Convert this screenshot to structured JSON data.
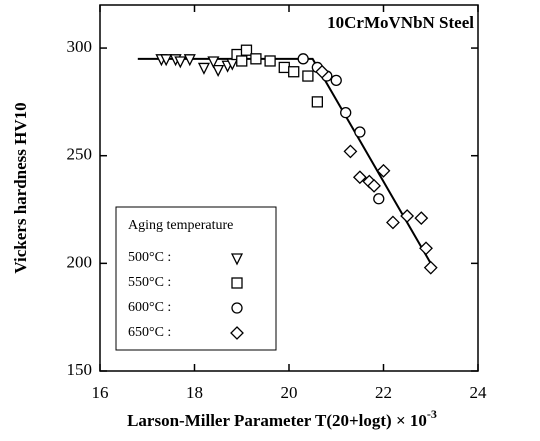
{
  "chart_data": {
    "type": "scatter",
    "annotation": "10CrMoVNbN Steel",
    "xlabel": "Larson-Miller Parameter T(20+logt) × 10",
    "xlabel_sup": "-3",
    "ylabel": "Vickers hardness  HV10",
    "xlim": [
      16,
      24
    ],
    "ylim": [
      150,
      320
    ],
    "xticks": [
      16,
      18,
      20,
      22,
      24
    ],
    "yticks": [
      150,
      200,
      250,
      300
    ],
    "legend_title": "Aging temperature",
    "legend": "lower left",
    "series": [
      {
        "name": "500°C :",
        "marker": "triangle-down",
        "color": "#000000",
        "x": [
          17.3,
          17.4,
          17.6,
          17.7,
          17.9,
          18.2,
          18.5,
          18.7,
          18.8,
          18.4
        ],
        "y": [
          295,
          295,
          295,
          294,
          295,
          291,
          290,
          292,
          293,
          294
        ]
      },
      {
        "name": "550°C :",
        "marker": "square",
        "color": "#000000",
        "x": [
          18.9,
          19.1,
          19.0,
          19.3,
          19.6,
          19.9,
          20.1,
          20.4,
          20.6
        ],
        "y": [
          297,
          299,
          294,
          295,
          294,
          291,
          289,
          287,
          275
        ]
      },
      {
        "name": "600°C :",
        "marker": "circle",
        "color": "#000000",
        "x": [
          20.3,
          20.6,
          20.8,
          21.0,
          21.2,
          21.5,
          21.9
        ],
        "y": [
          295,
          291,
          287,
          285,
          270,
          261,
          230
        ]
      },
      {
        "name": "650°C :",
        "marker": "diamond",
        "color": "#000000",
        "x": [
          20.7,
          21.3,
          21.5,
          21.7,
          21.8,
          22.0,
          22.2,
          22.5,
          22.8,
          22.9,
          23.0
        ],
        "y": [
          289,
          252,
          240,
          238,
          236,
          243,
          219,
          222,
          221,
          207,
          198
        ]
      }
    ],
    "fit_line": {
      "x": [
        16.8,
        20.5,
        23.0
      ],
      "y": [
        295,
        295,
        200
      ]
    }
  }
}
